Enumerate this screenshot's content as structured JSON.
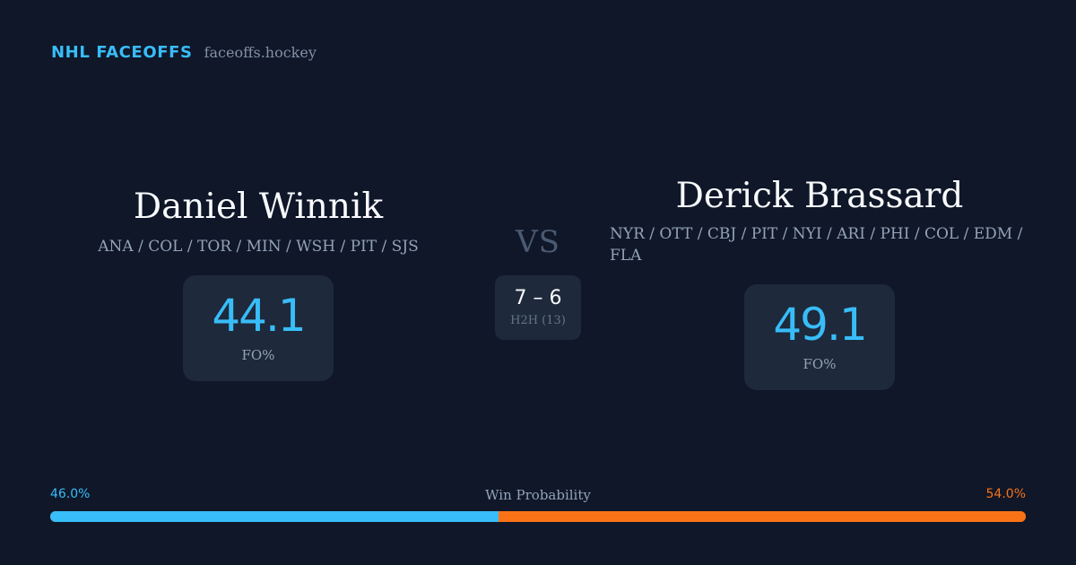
{
  "header": {
    "brand": "NHL FACEOFFS",
    "domain": "faceoffs.hockey"
  },
  "player_left": {
    "name": "Daniel Winnik",
    "teams": "ANA / COL / TOR / MIN / WSH / PIT / SJS",
    "fo_value": "44.1",
    "fo_label": "FO%"
  },
  "player_right": {
    "name": "Derick Brassard",
    "teams": "NYR / OTT / CBJ / PIT / NYI / ARI / PHI / COL / EDM / FLA",
    "fo_value": "49.1",
    "fo_label": "FO%"
  },
  "matchup": {
    "vs": "VS",
    "h2h_score": "7 – 6",
    "h2h_label": "H2H (13)"
  },
  "win_probability": {
    "title": "Win Probability",
    "left_label": "46.0%",
    "right_label": "54.0%",
    "left_fraction": 0.46,
    "right_fraction": 0.54
  },
  "colors": {
    "background": "#0f1729",
    "accent_left": "#38bdf8",
    "accent_right": "#f97316",
    "card": "#1e293b"
  }
}
